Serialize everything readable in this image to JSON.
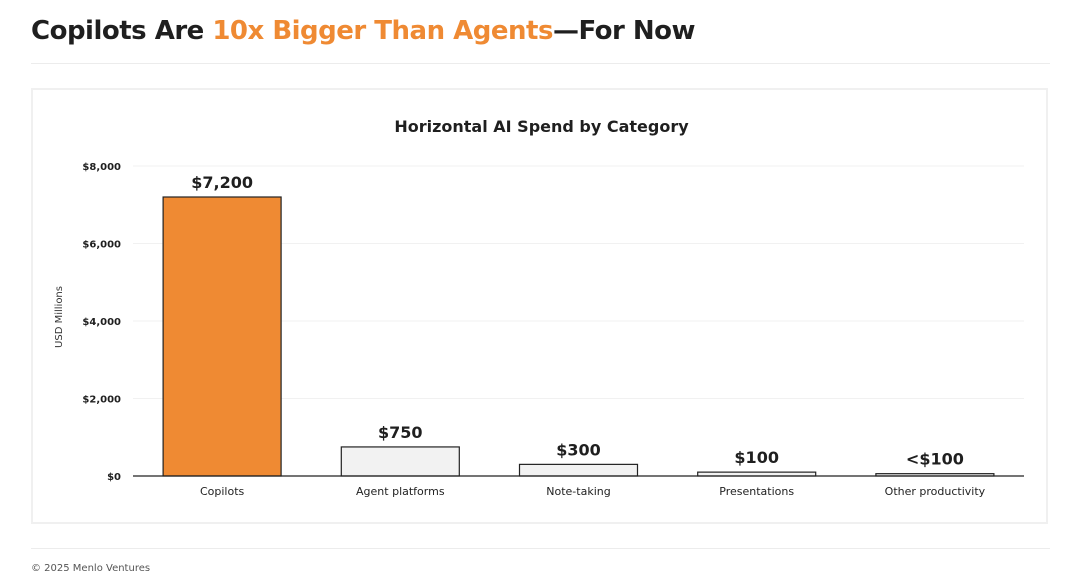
{
  "header": {
    "title_part1": "Copilots Are ",
    "title_accent": "10x Bigger Than Agents",
    "title_part2": "—For Now"
  },
  "footer": {
    "copyright": "© 2025 Menlo Ventures"
  },
  "colors": {
    "accent": "#ef8a33",
    "bar_neutral": "#f2f2f2",
    "bar_outline": "#222222",
    "text_dark": "#1f1f1f"
  },
  "chart_data": {
    "type": "bar",
    "title": "Horizontal AI Spend by Category",
    "ylabel": "USD Millions",
    "xlabel": "",
    "categories": [
      "Copilots",
      "Agent platforms",
      "Note-taking",
      "Presentations",
      "Other productivity"
    ],
    "values": [
      7200,
      750,
      300,
      100,
      60
    ],
    "value_labels": [
      "$7,200",
      "$750",
      "$300",
      "$100",
      "<$100"
    ],
    "highlight_index": 0,
    "ylim": [
      0,
      8000
    ],
    "yticks": [
      0,
      2000,
      4000,
      6000,
      8000
    ],
    "ytick_labels": [
      "$0",
      "$2,000",
      "$4,000",
      "$6,000",
      "$8,000"
    ],
    "grid": true,
    "legend": "none"
  }
}
